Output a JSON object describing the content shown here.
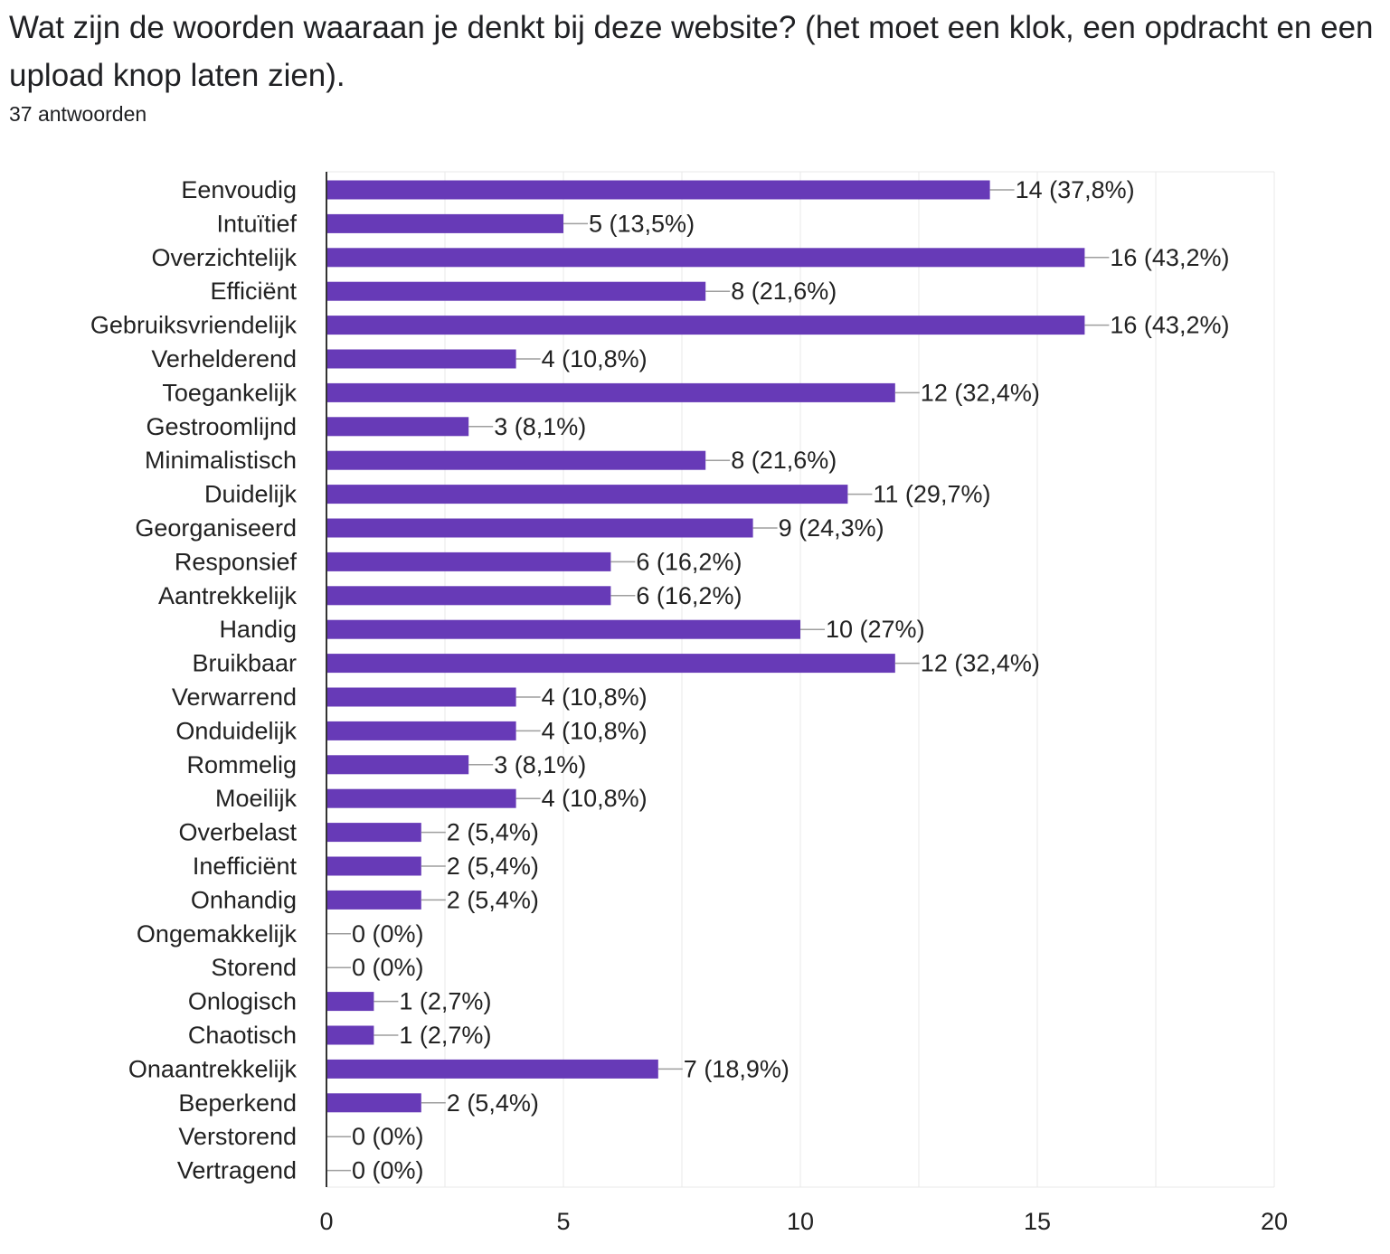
{
  "question": {
    "title": "Wat zijn de woorden waaraan je denkt bij deze website? (het moet een klok, een opdracht en een upload knop laten zien).",
    "response_count": "37 antwoorden"
  },
  "colors": {
    "bar": "#673ab7",
    "grid": "#e8e8e8",
    "axis": "#333333",
    "text": "#222222"
  },
  "chart_data": {
    "type": "bar",
    "orientation": "horizontal",
    "title": "Wat zijn de woorden waaraan je denkt bij deze website? (het moet een klok, een opdracht en een upload knop laten zien).",
    "xlabel": "",
    "ylabel": "",
    "xlim": [
      0,
      20
    ],
    "x_ticks": [
      0,
      5,
      10,
      15,
      20
    ],
    "grid": true,
    "legend": "none",
    "categories": [
      "Eenvoudig",
      "Intuïtief",
      "Overzichtelijk",
      "Efficiënt",
      "Gebruiksvriendelijk",
      "Verhelderend",
      "Toegankelijk",
      "Gestroomlijnd",
      "Minimalistisch",
      "Duidelijk",
      "Georganiseerd",
      "Responsief",
      "Aantrekkelijk",
      "Handig",
      "Bruikbaar",
      "Verwarrend",
      "Onduidelijk",
      "Rommelig",
      "Moeilijk",
      "Overbelast",
      "Inefficiënt",
      "Onhandig",
      "Ongemakkelijk",
      "Storend",
      "Onlogisch",
      "Chaotisch",
      "Onaantrekkelijk",
      "Beperkend",
      "Verstorend",
      "Vertragend"
    ],
    "values": [
      14,
      5,
      16,
      8,
      16,
      4,
      12,
      3,
      8,
      11,
      9,
      6,
      6,
      10,
      12,
      4,
      4,
      3,
      4,
      2,
      2,
      2,
      0,
      0,
      1,
      1,
      7,
      2,
      0,
      0
    ],
    "data_labels": [
      "14 (37,8%)",
      "5 (13,5%)",
      "16 (43,2%)",
      "8 (21,6%)",
      "16 (43,2%)",
      "4 (10,8%)",
      "12 (32,4%)",
      "3 (8,1%)",
      "8 (21,6%)",
      "11 (29,7%)",
      "9 (24,3%)",
      "6 (16,2%)",
      "6 (16,2%)",
      "10 (27%)",
      "12 (32,4%)",
      "4 (10,8%)",
      "4 (10,8%)",
      "3 (8,1%)",
      "4 (10,8%)",
      "2 (5,4%)",
      "2 (5,4%)",
      "2 (5,4%)",
      "0 (0%)",
      "0 (0%)",
      "1 (2,7%)",
      "1 (2,7%)",
      "7 (18,9%)",
      "2 (5,4%)",
      "0 (0%)",
      "0 (0%)"
    ]
  }
}
